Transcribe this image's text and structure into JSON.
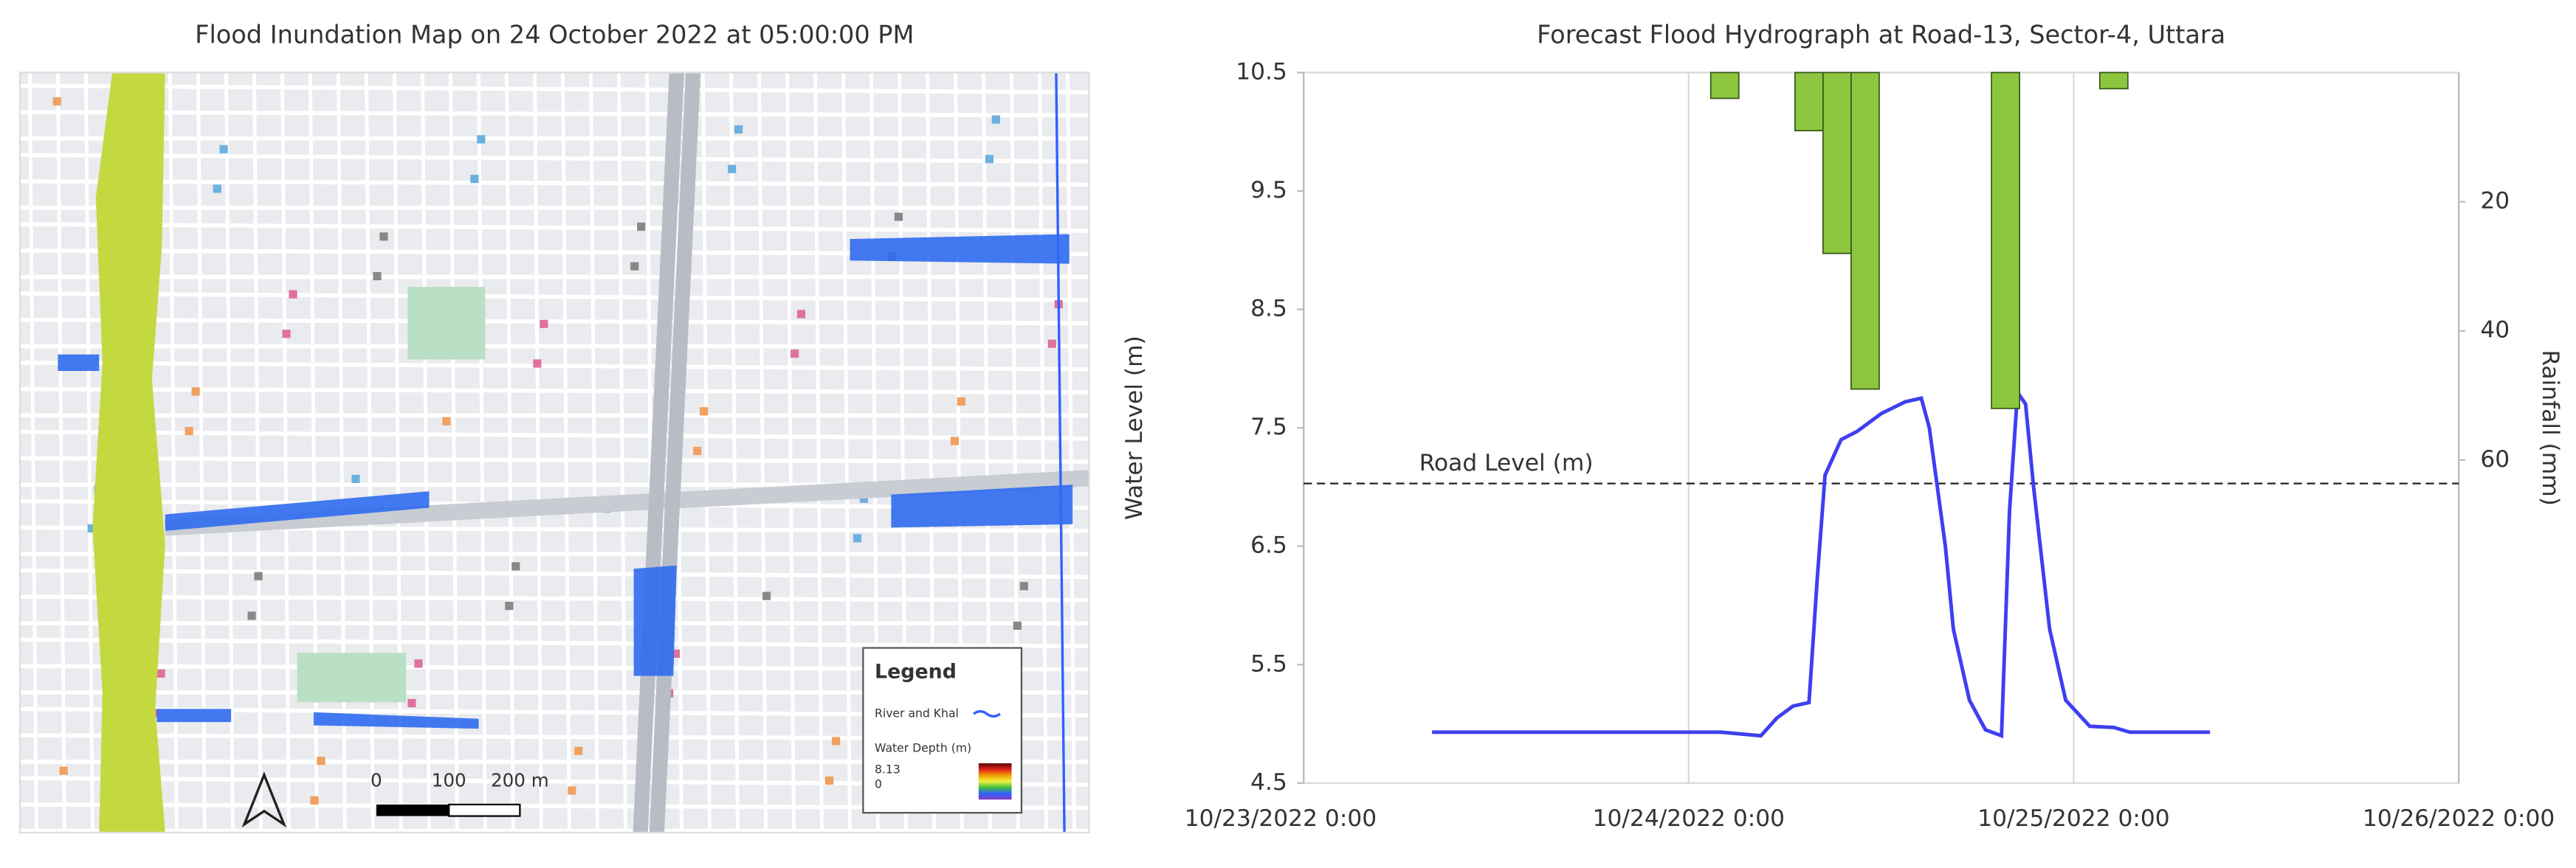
{
  "map": {
    "title": "Flood Inundation Map on 24 October 2022 at 05:00:00 PM",
    "legend": {
      "title": "Legend",
      "river": "River and Khal",
      "depth_title": "Water Depth (m)",
      "depth_max": 8.13,
      "depth_min": 0
    },
    "scale": [
      "0",
      "100",
      "200 m"
    ]
  },
  "chart_data": {
    "type": "line",
    "title": "Forecast Flood Hydrograph at Road-13, Sector-4, Uttara",
    "y_label": "Water Level (m)",
    "y2_label": "Rainfall (mm)",
    "xlim": [
      "10/23/2022 0:00",
      "10/26/2022 0:00"
    ],
    "xticks": [
      "10/23/2022 0:00",
      "10/24/2022 0:00",
      "10/25/2022 0:00",
      "10/26/2022 0:00"
    ],
    "ylim": [
      4.5,
      10.5
    ],
    "yticks": [
      4.5,
      5.5,
      6.5,
      7.5,
      8.5,
      9.5,
      10.5
    ],
    "y2lim": [
      0,
      110
    ],
    "y2_inverted": true,
    "y2ticks": [
      20,
      40,
      60
    ],
    "grid": "x",
    "reference_lines": [
      {
        "label": "Road Level (m)",
        "value": 7.03
      }
    ],
    "series": [
      {
        "type": "line",
        "color": "#3f3ff0",
        "x": [
          "10/23/2022 8:00",
          "10/24/2022 2:00",
          "10/24/2022 4:30",
          "10/24/2022 5:30",
          "10/24/2022 6:30",
          "10/24/2022 7:30",
          "10/24/2022 8:00",
          "10/24/2022 8:30",
          "10/24/2022 9:30",
          "10/24/2022 10:30",
          "10/24/2022 12:00",
          "10/24/2022 13:30",
          "10/24/2022 14:30",
          "10/24/2022 15:00",
          "10/24/2022 16:00",
          "10/24/2022 16:30",
          "10/24/2022 17:30",
          "10/24/2022 18:30",
          "10/24/2022 19:30",
          "10/24/2022 20:00",
          "10/24/2022 20:30",
          "10/24/2022 21:00",
          "10/24/2022 21:30",
          "10/24/2022 22:30",
          "10/24/2022 23:30",
          "10/25/2022 1:00",
          "10/25/2022 2:30",
          "10/25/2022 3:30",
          "10/25/2022 8:30"
        ],
        "values": [
          4.93,
          4.93,
          4.9,
          5.05,
          5.15,
          5.18,
          6.2,
          7.1,
          7.4,
          7.47,
          7.62,
          7.72,
          7.75,
          7.5,
          6.5,
          5.8,
          5.2,
          4.95,
          4.9,
          6.8,
          7.8,
          7.7,
          7.0,
          5.8,
          5.2,
          4.98,
          4.97,
          4.93,
          4.93
        ]
      },
      {
        "type": "bar",
        "axis": "y2",
        "color": "#8cc63f",
        "x": [
          "10/24/2022 2:15",
          "10/24/2022 7:30",
          "10/24/2022 9:15",
          "10/24/2022 11:00",
          "10/24/2022 19:45",
          "10/25/2022 2:30"
        ],
        "values": [
          4,
          9,
          28,
          49,
          52,
          2.5
        ]
      }
    ]
  }
}
